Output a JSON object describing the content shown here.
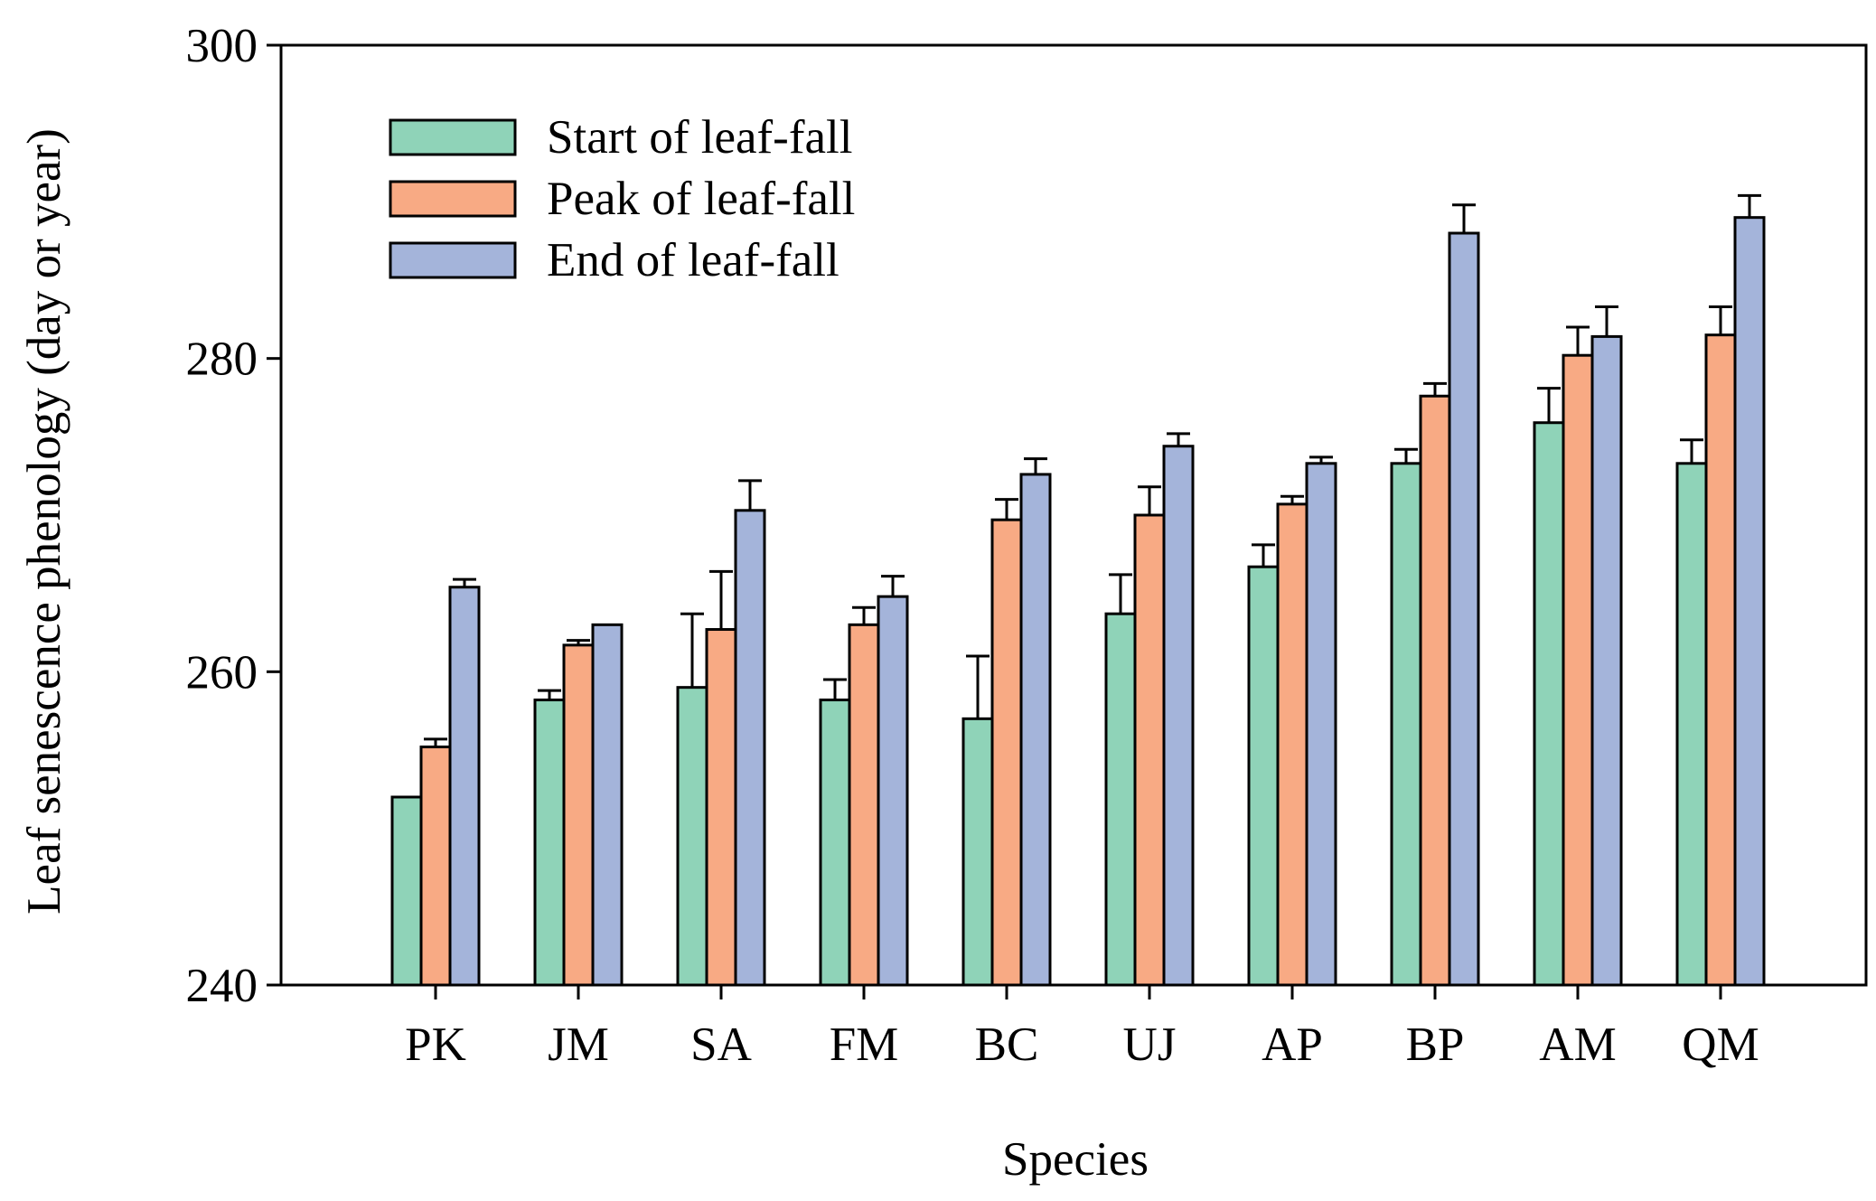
{
  "chart_data": {
    "type": "bar",
    "xlabel": "Species",
    "ylabel": "Leaf senescence phenology (day or year)",
    "ylim": [
      240,
      300
    ],
    "yticks": [
      240,
      260,
      280,
      300
    ],
    "grid": false,
    "legend_position": "top-left",
    "categories": [
      "PK",
      "JM",
      "SA",
      "FM",
      "BC",
      "UJ",
      "AP",
      "BP",
      "AM",
      "QM"
    ],
    "series": [
      {
        "name": "Start of leaf-fall",
        "color": "#8fd3b8",
        "values": [
          252.0,
          258.2,
          259.0,
          258.2,
          257.0,
          263.7,
          266.7,
          273.3,
          275.9,
          273.3
        ],
        "errors": [
          0.0,
          0.6,
          4.7,
          1.3,
          4.0,
          2.5,
          1.4,
          0.9,
          2.2,
          1.5
        ]
      },
      {
        "name": "Peak of leaf-fall",
        "color": "#f8aa84",
        "values": [
          255.2,
          261.7,
          262.7,
          263.0,
          269.7,
          270.0,
          270.7,
          277.6,
          280.2,
          281.5
        ],
        "errors": [
          0.5,
          0.3,
          3.7,
          1.1,
          1.3,
          1.8,
          0.5,
          0.8,
          1.8,
          1.8
        ]
      },
      {
        "name": "End of leaf-fall",
        "color": "#a4b4da",
        "values": [
          265.4,
          263.0,
          270.3,
          264.8,
          272.6,
          274.4,
          273.3,
          288.0,
          281.4,
          289.0
        ],
        "errors": [
          0.5,
          0.0,
          1.9,
          1.3,
          1.0,
          0.8,
          0.4,
          1.8,
          1.9,
          1.4
        ]
      }
    ]
  }
}
